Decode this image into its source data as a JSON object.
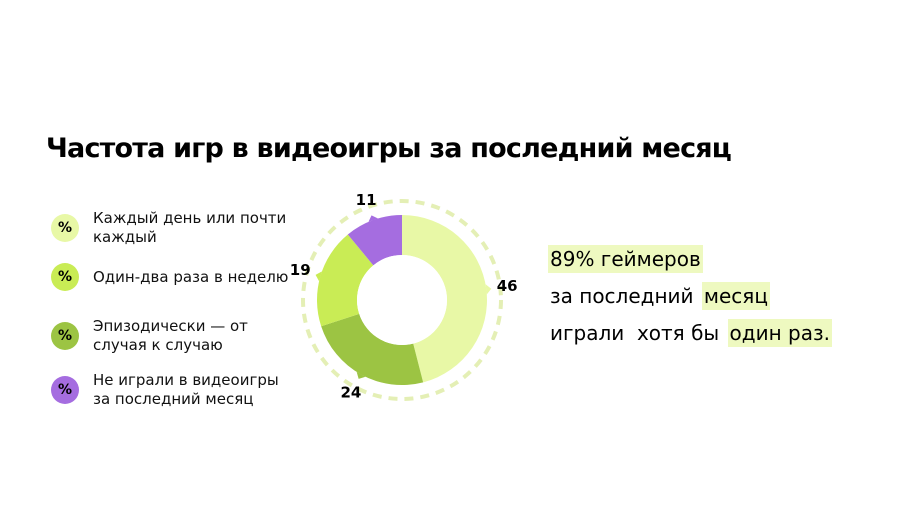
{
  "chart_data": {
    "type": "donut",
    "title": "Частота игр в видеоигры за последний месяц",
    "legend_icon_text": "%",
    "categories": [
      "Каждый день или почти каждый",
      "Эпизодически — от случая к случаю",
      "Один-два раза в неделю",
      "Не играли в видеоигры за последний месяц"
    ],
    "values": [
      46,
      24,
      19,
      11
    ],
    "colors": [
      "#e8f8a6",
      "#9cc443",
      "#c9ec55",
      "#a56de0"
    ],
    "annotation": {
      "lines": [
        {
          "parts": [
            {
              "text": "89% геймеров",
              "highlight": true
            }
          ]
        },
        {
          "parts": [
            {
              "text": "за последний ",
              "highlight": false
            },
            {
              "text": "месяц",
              "highlight": true
            }
          ]
        },
        {
          "parts": [
            {
              "text": "играли  хотя бы ",
              "highlight": false
            },
            {
              "text": "один раз.",
              "highlight": true
            }
          ]
        }
      ]
    }
  }
}
